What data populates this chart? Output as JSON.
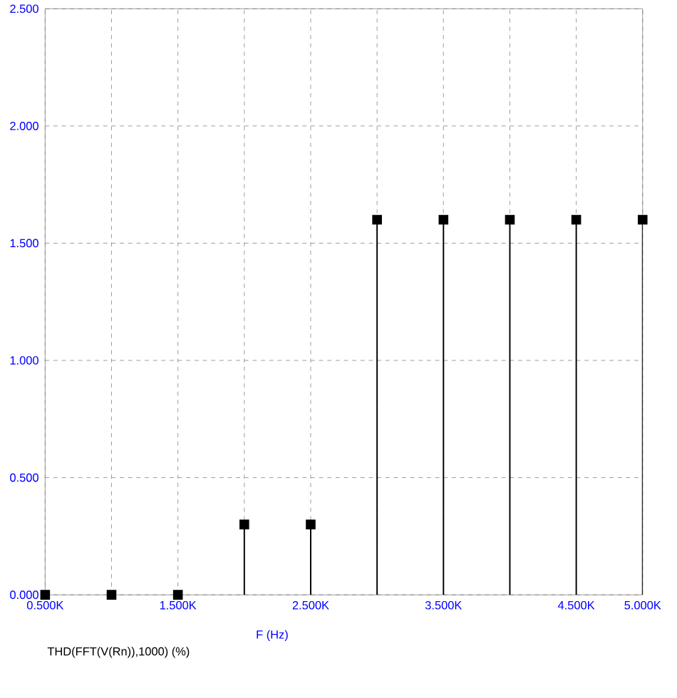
{
  "chart_data": {
    "type": "lollipop",
    "xlabel": "F (Hz)",
    "annotations": [
      "THD(FFT(V(Rn)),1000) (%)"
    ],
    "x": [
      500,
      1000,
      1500,
      2000,
      2500,
      3000,
      3500,
      4000,
      4500,
      5000
    ],
    "series": [
      {
        "color": "#000000",
        "values": [
          0,
          0,
          0,
          0.3,
          0.3,
          1.6,
          1.6,
          1.6,
          1.6,
          1.6
        ]
      }
    ],
    "xlim": [
      500,
      5000
    ],
    "xticks": [
      {
        "value": 500,
        "label": "0.500K"
      },
      {
        "value": 1000,
        "label": null
      },
      {
        "value": 1500,
        "label": "1.500K"
      },
      {
        "value": 2000,
        "label": null
      },
      {
        "value": 2500,
        "label": "2.500K"
      },
      {
        "value": 3000,
        "label": null
      },
      {
        "value": 3500,
        "label": "3.500K"
      },
      {
        "value": 4000,
        "label": null
      },
      {
        "value": 4500,
        "label": "4.500K"
      },
      {
        "value": 5000,
        "label": "5.000K"
      }
    ],
    "ylim": [
      0,
      2.5
    ],
    "yticks": [
      {
        "value": 0,
        "label": "0.000"
      },
      {
        "value": 0.5,
        "label": "0.500"
      },
      {
        "value": 1.0,
        "label": "1.000"
      },
      {
        "value": 1.5,
        "label": "1.500"
      },
      {
        "value": 2.0,
        "label": "2.000"
      },
      {
        "value": 2.5,
        "label": "2.500"
      }
    ],
    "grid": true,
    "marker": "square"
  }
}
